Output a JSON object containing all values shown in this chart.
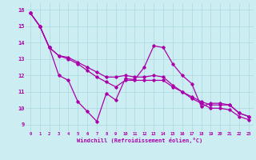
{
  "xlabel": "Windchill (Refroidissement éolien,°C)",
  "background_color": "#cceef2",
  "grid_color": "#aad8de",
  "line_color": "#aa00aa",
  "x_ticks": [
    0,
    1,
    2,
    3,
    4,
    5,
    6,
    7,
    8,
    9,
    10,
    11,
    12,
    13,
    14,
    15,
    16,
    17,
    18,
    19,
    20,
    21,
    22,
    23
  ],
  "y_ticks": [
    9,
    10,
    11,
    12,
    13,
    14,
    15,
    16
  ],
  "xlim": [
    -0.5,
    23.5
  ],
  "ylim": [
    8.6,
    16.4
  ],
  "series1": [
    15.8,
    15.0,
    13.7,
    12.0,
    11.7,
    10.4,
    9.8,
    9.2,
    10.9,
    10.5,
    11.8,
    11.75,
    12.5,
    13.8,
    13.7,
    12.7,
    12.0,
    11.5,
    10.1,
    10.3,
    10.3,
    10.2,
    9.7,
    9.5
  ],
  "series2": [
    15.8,
    15.0,
    13.7,
    13.2,
    13.1,
    12.8,
    12.5,
    12.2,
    11.9,
    11.9,
    12.0,
    11.9,
    11.9,
    12.0,
    11.9,
    11.4,
    11.0,
    10.7,
    10.4,
    10.2,
    10.2,
    10.2,
    9.7,
    9.5
  ],
  "series3": [
    15.8,
    15.0,
    13.7,
    13.2,
    13.0,
    12.7,
    12.3,
    11.9,
    11.6,
    11.3,
    11.7,
    11.7,
    11.7,
    11.7,
    11.7,
    11.3,
    11.0,
    10.6,
    10.3,
    10.0,
    10.0,
    9.9,
    9.5,
    9.3
  ]
}
